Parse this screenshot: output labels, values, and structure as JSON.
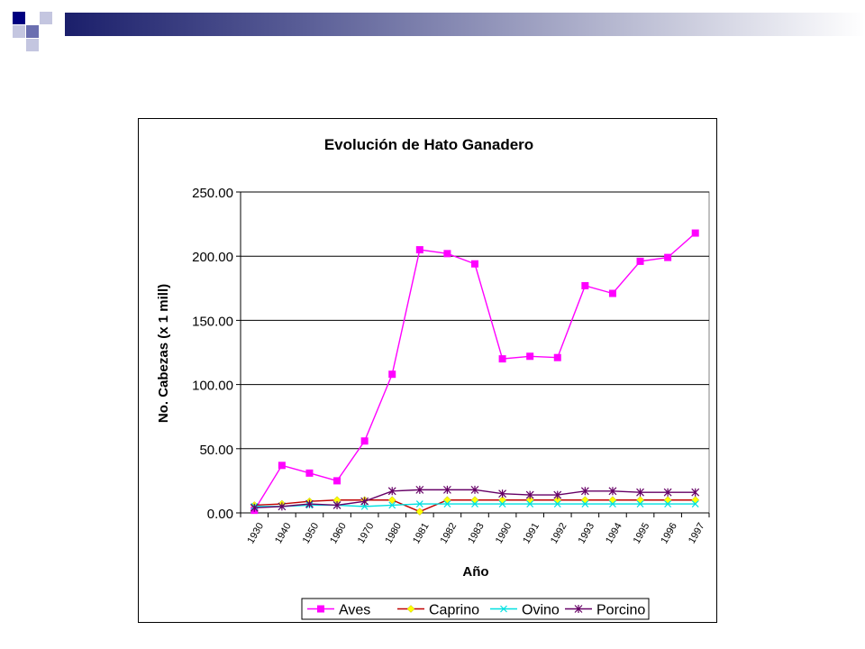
{
  "slide": {
    "decor_colors": {
      "dark": "#000080",
      "mid": "#6b6fb0",
      "light": "#c4c6e0"
    }
  },
  "chart_data": {
    "type": "line",
    "title": "Evolución de Hato Ganadero",
    "xlabel": "Año",
    "ylabel": "No. Cabezas (x 1 mill)",
    "categories": [
      "1930",
      "1940",
      "1950",
      "1960",
      "1970",
      "1980",
      "1981",
      "1982",
      "1983",
      "1990",
      "1991",
      "1992",
      "1993",
      "1994",
      "1995",
      "1996",
      "1997"
    ],
    "ylim": [
      0,
      250
    ],
    "yticks": [
      "0.00",
      "50.00",
      "100.00",
      "150.00",
      "200.00",
      "250.00"
    ],
    "grid": true,
    "legend_position": "bottom",
    "series": [
      {
        "name": "Aves",
        "color": "#ff00ff",
        "marker": "square",
        "values": [
          2,
          37,
          31,
          25,
          56,
          108,
          205,
          202,
          194,
          120,
          122,
          121,
          177,
          171,
          196,
          199,
          218
        ]
      },
      {
        "name": "Caprino",
        "color": "#c00000",
        "marker": "diamond",
        "marker_color": "#ffff00",
        "values": [
          6,
          7,
          9,
          10,
          10,
          10,
          1,
          10,
          10,
          10,
          10,
          10,
          10,
          10,
          10,
          10,
          10
        ]
      },
      {
        "name": "Ovino",
        "color": "#00e0e0",
        "marker": "x",
        "values": [
          5,
          5,
          6,
          6,
          5,
          6,
          7,
          7,
          7,
          7,
          7,
          7,
          7,
          7,
          7,
          7,
          7
        ]
      },
      {
        "name": "Porcino",
        "color": "#660066",
        "marker": "star",
        "values": [
          4,
          5,
          7,
          6,
          9,
          17,
          18,
          18,
          18,
          15,
          14,
          14,
          17,
          17,
          16,
          16,
          16
        ]
      }
    ]
  }
}
